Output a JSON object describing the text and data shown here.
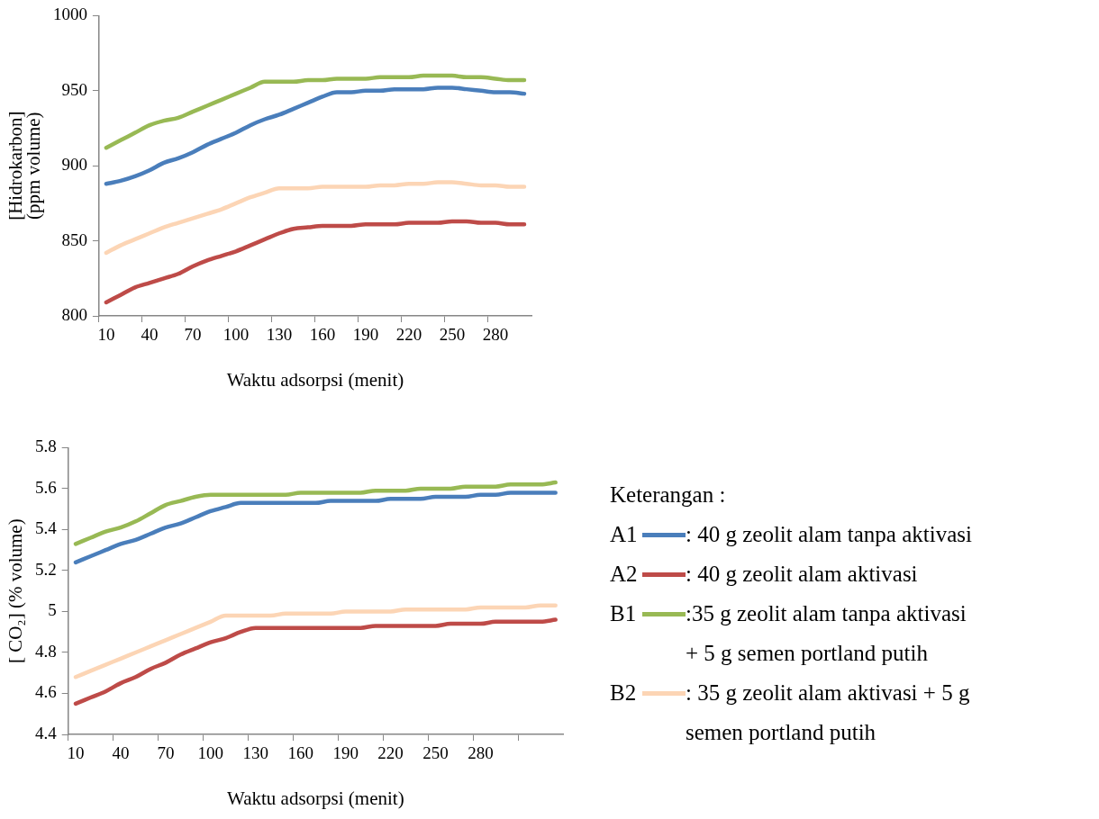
{
  "chart_data": [
    {
      "type": "line",
      "ylabel": "[Hidrokarbon]\n(ppm volume)",
      "xlabel": "Waktu adsorpsi (menit)",
      "categories": [
        "10",
        null,
        null,
        "40",
        null,
        null,
        "70",
        null,
        null,
        "100",
        null,
        null,
        "130",
        null,
        null,
        "160",
        null,
        null,
        "190",
        null,
        null,
        "220",
        null,
        null,
        "250",
        null,
        null,
        "280",
        null,
        null
      ],
      "ylim": [
        800,
        1000
      ],
      "yticks": [
        800,
        850,
        900,
        950,
        1000
      ],
      "marker": "none",
      "series": [
        {
          "color": "#4a7ebb",
          "values": [
            888,
            890,
            893,
            897,
            902,
            905,
            909,
            914,
            918,
            922,
            927,
            931,
            934,
            938,
            942,
            946,
            949,
            949,
            950,
            950,
            951,
            951,
            951,
            952,
            952,
            951,
            950,
            949,
            949,
            948
          ]
        },
        {
          "color": "#be4b48",
          "values": [
            809,
            814,
            819,
            822,
            825,
            828,
            833,
            837,
            840,
            843,
            847,
            851,
            855,
            858,
            859,
            860,
            860,
            860,
            861,
            861,
            861,
            862,
            862,
            862,
            863,
            863,
            862,
            862,
            861,
            861
          ]
        },
        {
          "color": "#98b954",
          "values": [
            912,
            917,
            922,
            927,
            930,
            932,
            936,
            940,
            944,
            948,
            952,
            956,
            956,
            956,
            957,
            957,
            958,
            958,
            958,
            959,
            959,
            959,
            960,
            960,
            960,
            959,
            959,
            958,
            957,
            957
          ]
        },
        {
          "color": "#fcd5b5",
          "values": [
            842,
            847,
            851,
            855,
            859,
            862,
            865,
            868,
            871,
            875,
            879,
            882,
            885,
            885,
            885,
            886,
            886,
            886,
            886,
            887,
            887,
            888,
            888,
            889,
            889,
            888,
            887,
            887,
            886,
            886
          ]
        }
      ]
    },
    {
      "type": "line",
      "ylabel": "[ CO₂] (% volume)",
      "xlabel": "Waktu adsorpsi (menit)",
      "categories": [
        "10",
        null,
        null,
        "40",
        null,
        null,
        "70",
        null,
        null,
        "100",
        null,
        null,
        "130",
        null,
        null,
        "160",
        null,
        null,
        "190",
        null,
        null,
        "220",
        null,
        null,
        "250",
        null,
        null,
        "280",
        null,
        null,
        null,
        null,
        null
      ],
      "ylim": [
        4.4,
        5.8
      ],
      "yticks": [
        4.4,
        4.6,
        4.8,
        5,
        5.2,
        5.4,
        5.6,
        5.8
      ],
      "marker": "none",
      "legend": "right",
      "legend_title": "Keterangan :",
      "annotations": [
        ": 40 g zeolit alam tanpa aktivasi",
        ": 40 g zeolit alam aktivasi",
        ":35 g zeolit alam tanpa aktivasi + 5 g semen portland putih",
        ": 35 g zeolit alam aktivasi + 5 g semen portland putih"
      ],
      "series": [
        {
          "name": "A1",
          "color": "#4a7ebb",
          "values": [
            5.24,
            5.27,
            5.3,
            5.33,
            5.35,
            5.38,
            5.41,
            5.43,
            5.46,
            5.49,
            5.51,
            5.53,
            5.53,
            5.53,
            5.53,
            5.53,
            5.53,
            5.54,
            5.54,
            5.54,
            5.54,
            5.55,
            5.55,
            5.55,
            5.56,
            5.56,
            5.56,
            5.57,
            5.57,
            5.58,
            5.58,
            5.58,
            5.58
          ]
        },
        {
          "name": "A2",
          "color": "#be4b48",
          "values": [
            4.55,
            4.58,
            4.61,
            4.65,
            4.68,
            4.72,
            4.75,
            4.79,
            4.82,
            4.85,
            4.87,
            4.9,
            4.92,
            4.92,
            4.92,
            4.92,
            4.92,
            4.92,
            4.92,
            4.92,
            4.93,
            4.93,
            4.93,
            4.93,
            4.93,
            4.94,
            4.94,
            4.94,
            4.95,
            4.95,
            4.95,
            4.95,
            4.96
          ]
        },
        {
          "name": "B1",
          "color": "#98b954",
          "values": [
            5.33,
            5.36,
            5.39,
            5.41,
            5.44,
            5.48,
            5.52,
            5.54,
            5.56,
            5.57,
            5.57,
            5.57,
            5.57,
            5.57,
            5.57,
            5.58,
            5.58,
            5.58,
            5.58,
            5.58,
            5.59,
            5.59,
            5.59,
            5.6,
            5.6,
            5.6,
            5.61,
            5.61,
            5.61,
            5.62,
            5.62,
            5.62,
            5.63
          ]
        },
        {
          "name": "B2",
          "color": "#fcd5b5",
          "values": [
            4.68,
            4.71,
            4.74,
            4.77,
            4.8,
            4.83,
            4.86,
            4.89,
            4.92,
            4.95,
            4.98,
            4.98,
            4.98,
            4.98,
            4.99,
            4.99,
            4.99,
            4.99,
            5.0,
            5.0,
            5.0,
            5.0,
            5.01,
            5.01,
            5.01,
            5.01,
            5.01,
            5.02,
            5.02,
            5.02,
            5.02,
            5.03,
            5.03
          ]
        }
      ]
    }
  ]
}
